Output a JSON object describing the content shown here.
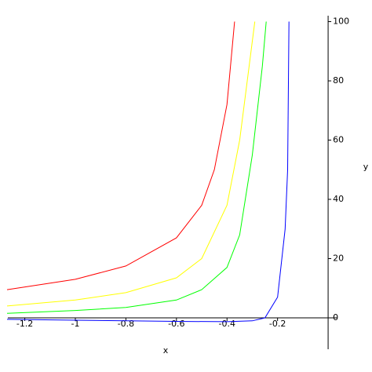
{
  "chart_data": {
    "type": "line",
    "xlabel": "x",
    "ylabel": "y",
    "xlim": [
      -1.267,
      0.037
    ],
    "ylim": [
      -10.6,
      102
    ],
    "xticks": [
      -1.2,
      -1,
      -0.8,
      -0.6,
      -0.4,
      -0.2
    ],
    "yticks": [
      0,
      20,
      40,
      60,
      80,
      100
    ],
    "grid": false,
    "series": [
      {
        "color": "#ff0000",
        "x": [
          -1.27,
          -1.0,
          -0.8,
          -0.6,
          -0.5,
          -0.45,
          -0.4,
          -0.37
        ],
        "values": [
          9.5,
          13,
          17.5,
          27,
          38,
          50,
          72,
          100
        ]
      },
      {
        "color": "#ffff00",
        "x": [
          -1.27,
          -1.0,
          -0.8,
          -0.6,
          -0.5,
          -0.4,
          -0.35,
          -0.29
        ],
        "values": [
          4,
          6,
          8.5,
          13.5,
          20,
          38,
          60,
          100
        ]
      },
      {
        "color": "#00ff00",
        "x": [
          -1.27,
          -1.0,
          -0.8,
          -0.6,
          -0.5,
          -0.4,
          -0.35,
          -0.3,
          -0.26,
          -0.245
        ],
        "values": [
          1.5,
          2.5,
          3.5,
          6,
          9.5,
          17,
          28,
          55,
          85,
          100
        ]
      },
      {
        "color": "#0000ff",
        "x": [
          -1.27,
          -1.0,
          -0.8,
          -0.6,
          -0.4,
          -0.3,
          -0.25,
          -0.2,
          -0.17,
          -0.16,
          -0.155
        ],
        "values": [
          -0.5,
          -0.8,
          -1,
          -1.2,
          -1.3,
          -1,
          0,
          7,
          30,
          50,
          100
        ]
      }
    ]
  }
}
